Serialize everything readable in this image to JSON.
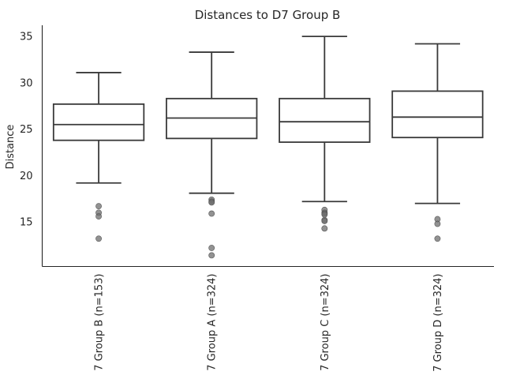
{
  "chart_data": {
    "type": "box",
    "title": "Distances to D7 Group B",
    "xlabel": "",
    "ylabel": "Distance",
    "ylim": [
      10.2,
      36.2
    ],
    "yticks": [
      15,
      20,
      25,
      30,
      35
    ],
    "grid": false,
    "categories": [
      "7 Group B (n=153)",
      "7 Group A (n=324)",
      "7 Group C (n=324)",
      "7 Group D (n=324)"
    ],
    "boxes": [
      {
        "whisker_low": 19.2,
        "q1": 23.8,
        "median": 25.5,
        "q3": 27.7,
        "whisker_high": 31.1,
        "outliers": [
          16.7,
          16.0,
          15.6,
          13.2
        ]
      },
      {
        "whisker_low": 18.1,
        "q1": 24.0,
        "median": 26.2,
        "q3": 28.3,
        "whisker_high": 33.3,
        "outliers": [
          17.4,
          17.2,
          17.1,
          15.9,
          12.2,
          11.4
        ]
      },
      {
        "whisker_low": 17.2,
        "q1": 23.6,
        "median": 25.8,
        "q3": 28.3,
        "whisker_high": 35.0,
        "outliers": [
          16.3,
          16.0,
          15.9,
          15.8,
          15.2,
          15.1,
          14.3
        ]
      },
      {
        "whisker_low": 17.0,
        "q1": 24.1,
        "median": 26.3,
        "q3": 29.1,
        "whisker_high": 34.2,
        "outliers": [
          15.3,
          14.8,
          13.2
        ]
      }
    ]
  }
}
